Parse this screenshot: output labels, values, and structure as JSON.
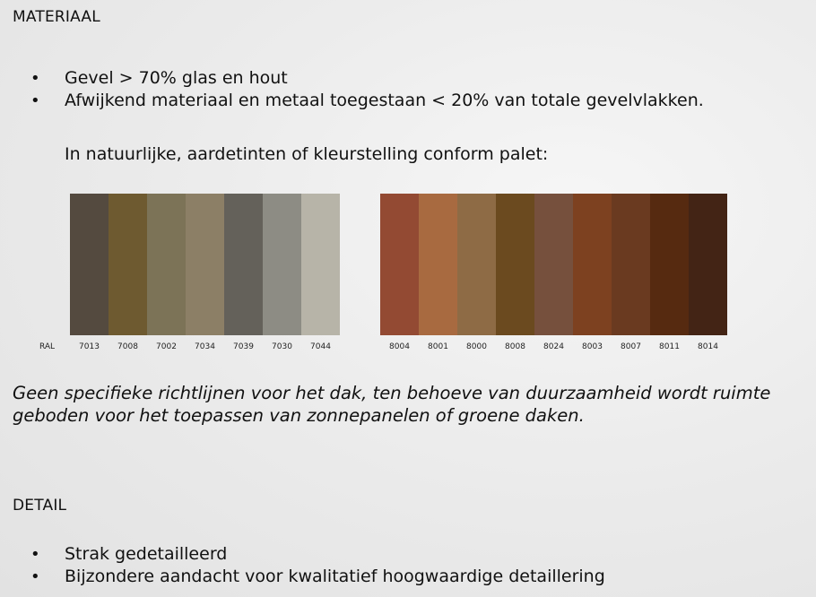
{
  "material": {
    "heading": "MATERIAAL",
    "bullets": [
      "Gevel > 70% glas en hout",
      "Afwijkend materiaal en metaal toegestaan < 20% van totale gevelvlakken."
    ],
    "palette_intro": "In natuurlijke, aardetinten  of kleurstelling conform palet:"
  },
  "palette": {
    "ral_label": "RAL",
    "left": [
      {
        "code": "7013",
        "color": "#544a3f"
      },
      {
        "code": "7008",
        "color": "#6e5a30"
      },
      {
        "code": "7002",
        "color": "#7c7357"
      },
      {
        "code": "7034",
        "color": "#8c7f66"
      },
      {
        "code": "7039",
        "color": "#64615a"
      },
      {
        "code": "7030",
        "color": "#8d8c84"
      },
      {
        "code": "7044",
        "color": "#b7b4a8"
      }
    ],
    "right": [
      {
        "code": "8004",
        "color": "#934a33"
      },
      {
        "code": "8001",
        "color": "#a86a40"
      },
      {
        "code": "8000",
        "color": "#8e6b45"
      },
      {
        "code": "8008",
        "color": "#6b4a1f"
      },
      {
        "code": "8024",
        "color": "#76503d"
      },
      {
        "code": "8003",
        "color": "#7d4120"
      },
      {
        "code": "8007",
        "color": "#6a3a20"
      },
      {
        "code": "8011",
        "color": "#562a10"
      },
      {
        "code": "8014",
        "color": "#432415"
      }
    ]
  },
  "roof_note": "Geen specifieke richtlijnen voor het dak, ten behoeve van duurzaamheid wordt ruimte geboden voor het toepassen van zonnepanelen of groene daken.",
  "detail": {
    "heading": "DETAIL",
    "bullets": [
      "Strak gedetailleerd",
      "Bijzondere aandacht voor kwalitatief hoogwaardige detaillering"
    ]
  }
}
